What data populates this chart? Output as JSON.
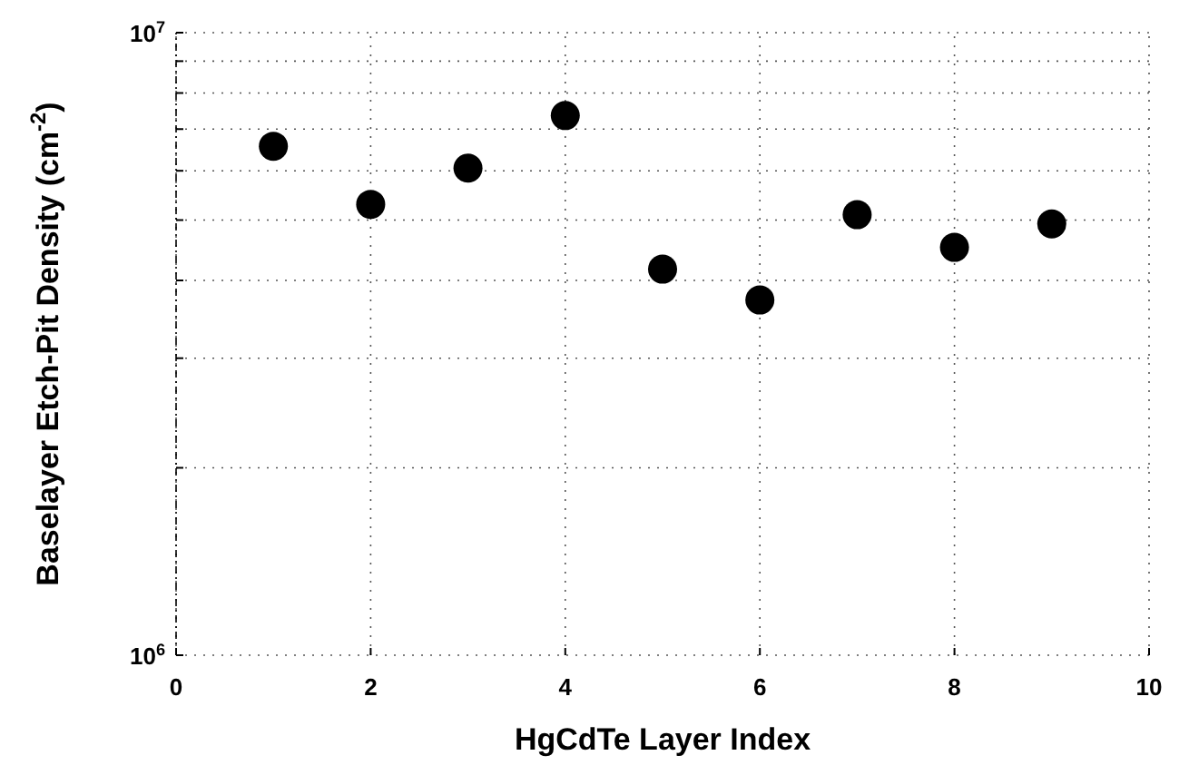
{
  "chart_data": {
    "type": "scatter",
    "xlabel": "HgCdTe Layer Index",
    "ylabel": "Baselayer Etch-Pit Density (cm$^{-2}$)",
    "x": [
      1,
      2,
      3,
      4,
      5,
      6,
      7,
      8,
      9
    ],
    "values": [
      6570000,
      5300000,
      6060000,
      7360000,
      4170000,
      3720000,
      5100000,
      4520000,
      4930000
    ],
    "color": "#000000",
    "marker": "circle",
    "log": true,
    "grid": true,
    "xlim": [
      0,
      10
    ],
    "xticks": [
      0,
      2,
      4,
      6,
      8,
      10
    ],
    "ylim": [
      1000000,
      10000000
    ],
    "yticks": [
      {
        "value": 1000000,
        "label": "10$^{6}$"
      },
      {
        "value": 2000000,
        "label": null
      },
      {
        "value": 3000000,
        "label": null
      },
      {
        "value": 4000000,
        "label": null
      },
      {
        "value": 5000000,
        "label": null
      },
      {
        "value": 6000000,
        "label": null
      },
      {
        "value": 7000000,
        "label": null
      },
      {
        "value": 8000000,
        "label": null
      },
      {
        "value": 9000000,
        "label": null
      },
      {
        "value": 10000000,
        "label": "10$^{7}$"
      }
    ]
  }
}
